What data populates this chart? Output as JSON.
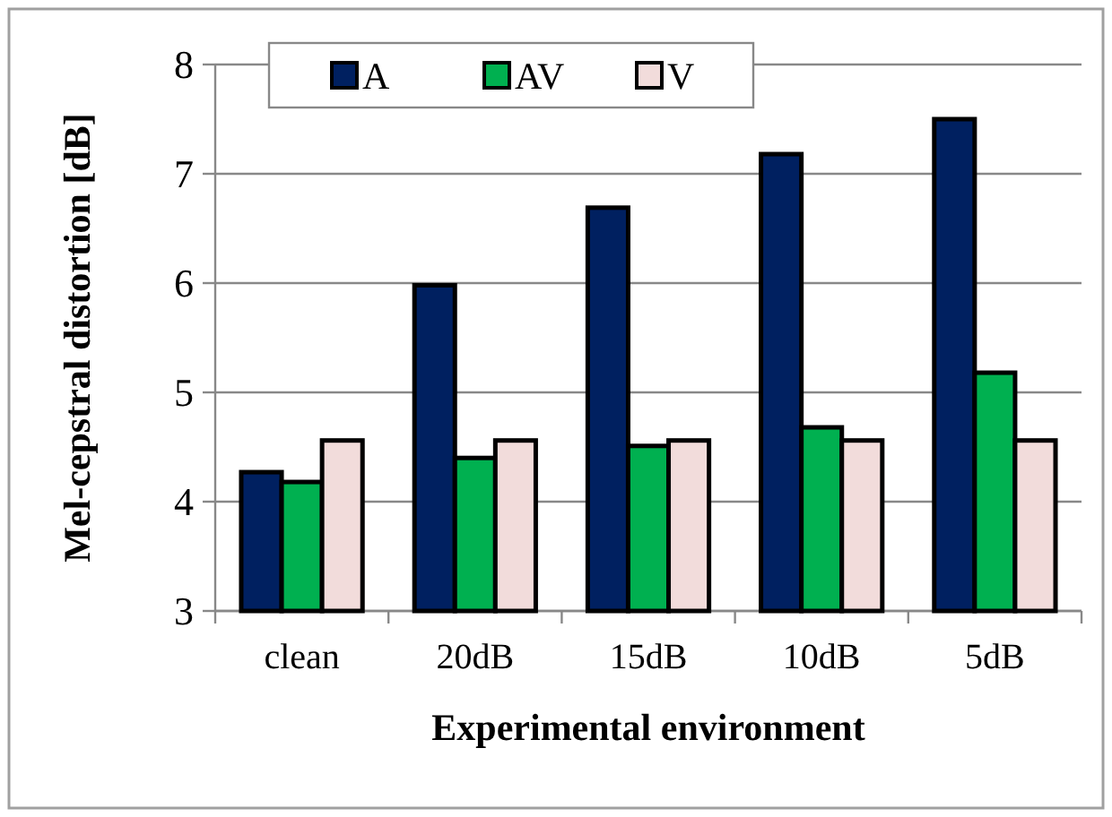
{
  "chart_data": {
    "type": "bar",
    "xlabel": "Experimental environment",
    "ylabel": "Mel-cepstral distortion [dB]",
    "categories": [
      "clean",
      "20dB",
      "15dB",
      "10dB",
      "5dB"
    ],
    "series": [
      {
        "name": "A",
        "color": "#002060",
        "values": [
          4.27,
          5.98,
          6.69,
          7.18,
          7.5
        ]
      },
      {
        "name": "AV",
        "color": "#00b050",
        "values": [
          4.18,
          4.4,
          4.51,
          4.68,
          5.18
        ]
      },
      {
        "name": "V",
        "color": "#f2dcdb",
        "values": [
          4.56,
          4.56,
          4.56,
          4.56,
          4.56
        ]
      }
    ],
    "ylim": [
      3,
      8
    ],
    "yticks": [
      3,
      4,
      5,
      6,
      7,
      8
    ],
    "grid": "y",
    "legend": "top"
  }
}
